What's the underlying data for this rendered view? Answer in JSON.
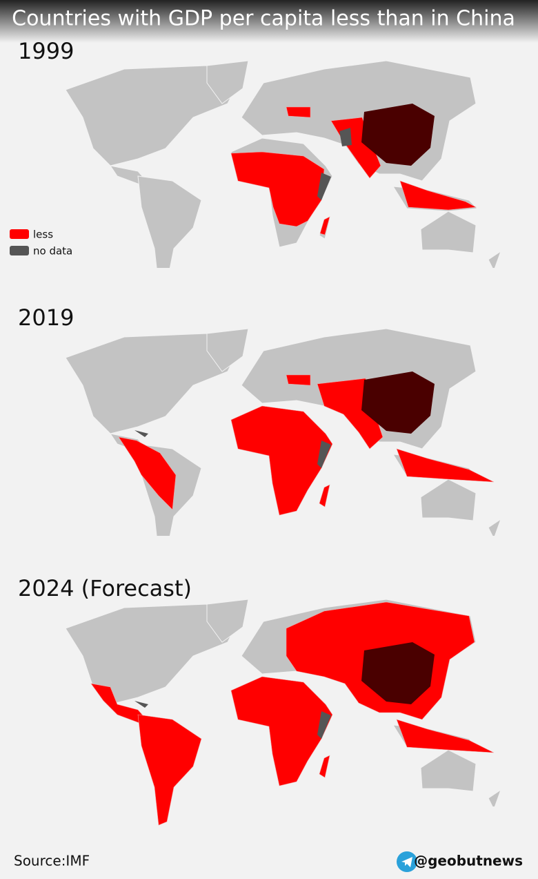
{
  "title": "Countries with GDP per capita less than in China",
  "maps": [
    {
      "label": "1999"
    },
    {
      "label": "2019"
    },
    {
      "label": "2024 (Forecast)"
    }
  ],
  "legend": [
    {
      "label": "less",
      "color": "#ff0000"
    },
    {
      "label": "no data",
      "color": "#555555"
    }
  ],
  "footer": {
    "source": "Source:IMF",
    "handle": "@geobutnews"
  }
}
